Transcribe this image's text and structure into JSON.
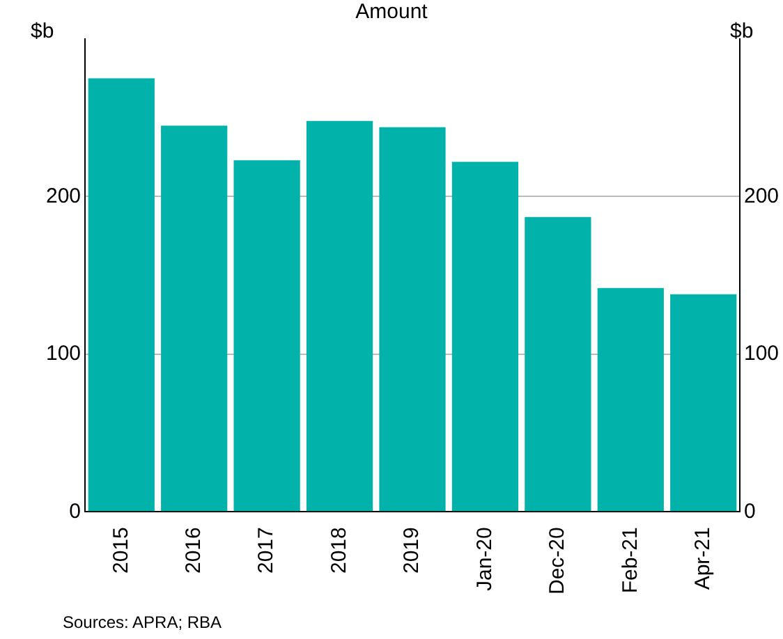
{
  "chart_data": {
    "type": "bar",
    "title": "Amount",
    "ylabel": "$b",
    "y2label": "$b",
    "categories": [
      "2015",
      "2016",
      "2017",
      "2018",
      "2019",
      "Jan-20",
      "Dec-20",
      "Feb-21",
      "Apr-21"
    ],
    "values": [
      275,
      245,
      223,
      248,
      244,
      222,
      187,
      142,
      138
    ],
    "color": "#00b2a9",
    "ylim": [
      0,
      300
    ],
    "yticks": [
      0,
      100,
      200
    ],
    "y2lim": [
      0,
      300
    ],
    "y2ticks": [
      0,
      100,
      200
    ],
    "grid": "y",
    "legend": false,
    "annotations": [
      "Sources: APRA; RBA"
    ]
  }
}
